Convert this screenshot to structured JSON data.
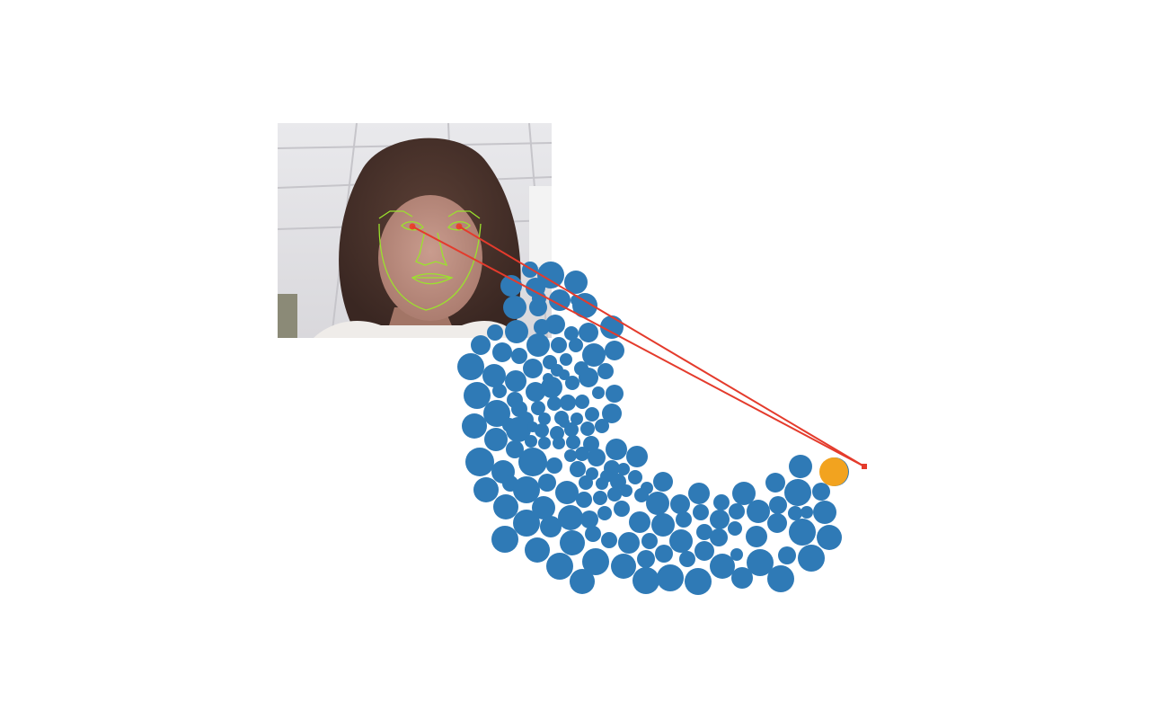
{
  "scene": {
    "background": "#ffffff"
  },
  "webcam": {
    "content": "webcam-face-image",
    "mesh_color": "#9be22d",
    "eye_marker_color": "#e8452c"
  },
  "bubbles": {
    "color": "#2f7ab6",
    "highlight_color": "#f2a31f",
    "highlighted_count": 1
  },
  "gaze": {
    "line_color": "#e43b2c",
    "target": "gaze-point"
  }
}
